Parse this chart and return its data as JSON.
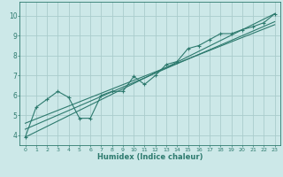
{
  "xlabel": "Humidex (Indice chaleur)",
  "bg_color": "#cce8e8",
  "line_color": "#2d7a6e",
  "grid_color": "#aacccc",
  "xlim": [
    -0.5,
    23.5
  ],
  "ylim": [
    3.5,
    10.7
  ],
  "xticks": [
    0,
    1,
    2,
    3,
    4,
    5,
    6,
    7,
    8,
    9,
    10,
    11,
    12,
    13,
    14,
    15,
    16,
    17,
    18,
    19,
    20,
    21,
    22,
    23
  ],
  "yticks": [
    4,
    5,
    6,
    7,
    8,
    9,
    10
  ],
  "zigzag_x": [
    0,
    1,
    2,
    3,
    4,
    5,
    6,
    7,
    8,
    9,
    10,
    11,
    12,
    13,
    14,
    15,
    16,
    17,
    18,
    19,
    20,
    21,
    22,
    23
  ],
  "zigzag_y": [
    3.9,
    5.4,
    5.8,
    6.2,
    5.9,
    4.85,
    4.85,
    6.0,
    6.2,
    6.2,
    6.95,
    6.55,
    7.0,
    7.55,
    7.7,
    8.35,
    8.5,
    8.8,
    9.1,
    9.1,
    9.3,
    9.45,
    9.65,
    10.1
  ],
  "line1_x": [
    0,
    23
  ],
  "line1_y": [
    3.9,
    10.1
  ],
  "line2_x": [
    0,
    23
  ],
  "line2_y": [
    4.3,
    9.7
  ],
  "line3_x": [
    0,
    23
  ],
  "line3_y": [
    4.6,
    9.55
  ]
}
